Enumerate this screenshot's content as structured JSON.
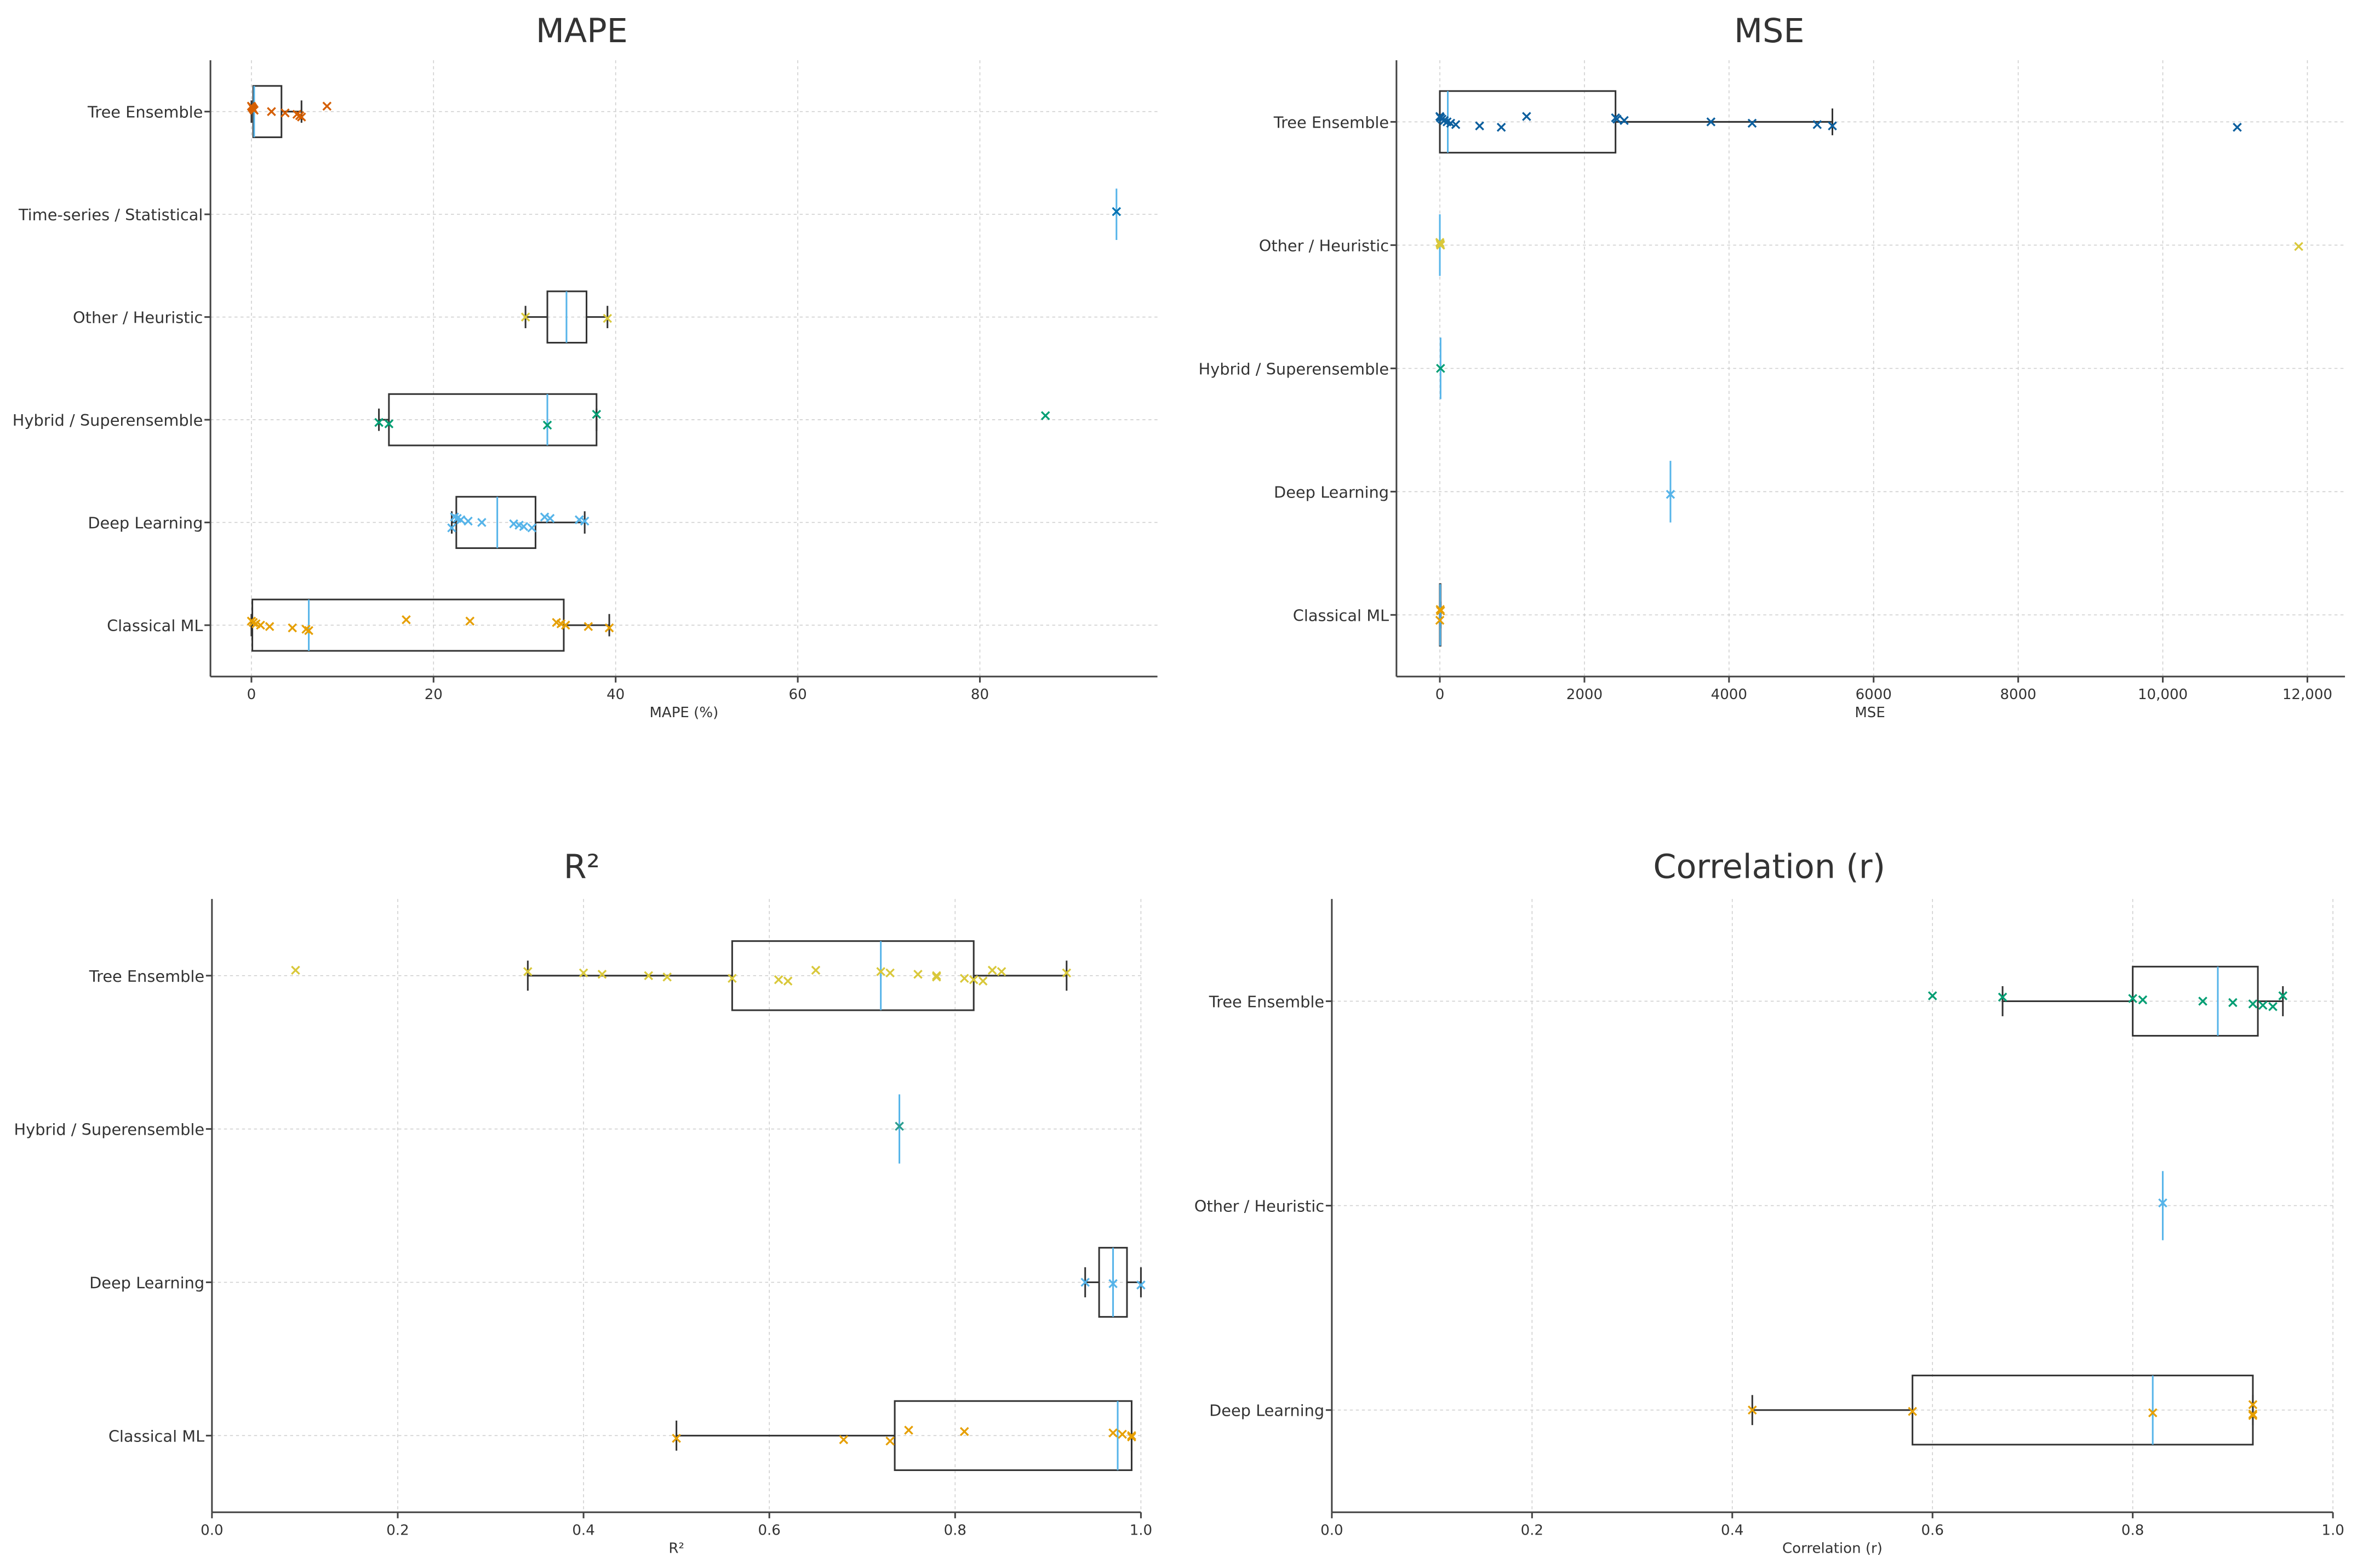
{
  "chart_data": [
    {
      "type": "boxplot",
      "orientation": "horizontal",
      "title": "MAPE",
      "xlabel": "MAPE (%)",
      "xlim": [
        -4.5,
        99.5
      ],
      "xticks": [
        0,
        20,
        40,
        60,
        80
      ],
      "xtick_labels": [
        "0",
        "20",
        "40",
        "60",
        "80"
      ],
      "grid": true,
      "categories": [
        {
          "name": "Tree Ensemble",
          "color": "#d55e00",
          "q1": 0.2,
          "median": 0.3,
          "q3": 3.3,
          "whisker_low": 0,
          "whisker_high": 5.5,
          "points": [
            0,
            0.1,
            0.2,
            0.3,
            2.2,
            3.7,
            5.0,
            5.3,
            5.5,
            8.3
          ]
        },
        {
          "name": "Time-series / Statistical",
          "color": "#0072b2",
          "q1": 95,
          "median": 95,
          "q3": 95,
          "whisker_low": 95,
          "whisker_high": 95,
          "points": [
            95
          ]
        },
        {
          "name": "Other / Heuristic",
          "color": "#d9c83a",
          "q1": 32.5,
          "median": 34.6,
          "q3": 36.8,
          "whisker_low": 30.1,
          "whisker_high": 39.1,
          "points": [
            30.1,
            39.1
          ]
        },
        {
          "name": "Hybrid / Superensemble",
          "color": "#009e73",
          "q1": 15.1,
          "median": 32.5,
          "q3": 37.9,
          "whisker_low": 14.0,
          "whisker_high": 37.9,
          "points": [
            14.0,
            15.1,
            32.5,
            37.9,
            87.2
          ]
        },
        {
          "name": "Deep Learning",
          "color": "#56b4e9",
          "q1": 22.5,
          "median": 27.0,
          "q3": 31.2,
          "whisker_low": 22.0,
          "whisker_high": 36.6,
          "points": [
            22.0,
            22.3,
            22.6,
            23.0,
            23.8,
            25.3,
            28.8,
            29.4,
            29.9,
            30.8,
            32.2,
            32.8,
            36.0,
            36.6
          ]
        },
        {
          "name": "Classical ML",
          "color": "#e69f00",
          "q1": 0.1,
          "median": 6.3,
          "q3": 34.3,
          "whisker_low": 0,
          "whisker_high": 39.3,
          "points": [
            0,
            0.2,
            0.5,
            1.0,
            2.0,
            4.5,
            6.0,
            6.3,
            17.0,
            24.0,
            33.5,
            34.0,
            34.5,
            37.0,
            39.3
          ]
        }
      ]
    },
    {
      "type": "boxplot",
      "orientation": "horizontal",
      "title": "MSE",
      "xlabel": "MSE",
      "xlim": [
        -600,
        12520
      ],
      "xticks": [
        0,
        2000,
        4000,
        6000,
        8000,
        10000,
        12000
      ],
      "xtick_labels": [
        "0",
        "2000",
        "4000",
        "6000",
        "8000",
        "10,000",
        "12,000"
      ],
      "grid": true,
      "categories": [
        {
          "name": "Tree Ensemble",
          "color": "#0c5f9e",
          "q1": 0,
          "median": 110,
          "q3": 2430,
          "whisker_low": 0,
          "whisker_high": 5430,
          "points": [
            0,
            10,
            30,
            60,
            100,
            150,
            220,
            550,
            850,
            1200,
            2430,
            2450,
            2550,
            3750,
            4320,
            5220,
            5430,
            11030
          ]
        },
        {
          "name": "Other / Heuristic",
          "color": "#d9c83a",
          "q1": 0,
          "median": 0,
          "q3": 0,
          "whisker_low": 0,
          "whisker_high": 0,
          "points": [
            0,
            5,
            10,
            11880
          ]
        },
        {
          "name": "Hybrid / Superensemble",
          "color": "#009e73",
          "q1": 10,
          "median": 10,
          "q3": 10,
          "whisker_low": 10,
          "whisker_high": 10,
          "points": [
            10
          ]
        },
        {
          "name": "Deep Learning",
          "color": "#56b4e9",
          "q1": 3190,
          "median": 3190,
          "q3": 3190,
          "whisker_low": 3190,
          "whisker_high": 3190,
          "points": [
            3190
          ]
        },
        {
          "name": "Classical ML",
          "color": "#e69f00",
          "q1": 0,
          "median": 5,
          "q3": 10,
          "whisker_low": 0,
          "whisker_high": 10,
          "points": [
            0,
            5,
            10
          ]
        }
      ]
    },
    {
      "type": "boxplot",
      "orientation": "horizontal",
      "title": "R²",
      "xlabel": "R²",
      "xlim": [
        0,
        1
      ],
      "xticks": [
        0,
        0.2,
        0.4,
        0.6,
        0.8,
        1.0
      ],
      "xtick_labels": [
        "0.0",
        "0.2",
        "0.4",
        "0.6",
        "0.8",
        "1.0"
      ],
      "grid": true,
      "categories": [
        {
          "name": "Tree Ensemble",
          "color": "#d9c83a",
          "q1": 0.56,
          "median": 0.72,
          "q3": 0.82,
          "whisker_low": 0.34,
          "whisker_high": 0.92,
          "points": [
            0.09,
            0.34,
            0.4,
            0.42,
            0.47,
            0.49,
            0.56,
            0.61,
            0.62,
            0.65,
            0.72,
            0.73,
            0.76,
            0.78,
            0.78,
            0.81,
            0.82,
            0.83,
            0.84,
            0.85,
            0.92
          ]
        },
        {
          "name": "Hybrid / Superensemble",
          "color": "#2a9d8f",
          "q1": 0.74,
          "median": 0.74,
          "q3": 0.74,
          "whisker_low": 0.74,
          "whisker_high": 0.74,
          "points": [
            0.74
          ]
        },
        {
          "name": "Deep Learning",
          "color": "#56b4e9",
          "q1": 0.955,
          "median": 0.97,
          "q3": 0.985,
          "whisker_low": 0.94,
          "whisker_high": 1.0,
          "points": [
            0.94,
            0.97,
            1.0
          ]
        },
        {
          "name": "Classical ML",
          "color": "#e69f00",
          "q1": 0.735,
          "median": 0.975,
          "q3": 0.99,
          "whisker_low": 0.5,
          "whisker_high": 0.99,
          "points": [
            0.5,
            0.68,
            0.73,
            0.75,
            0.81,
            0.97,
            0.98,
            0.99,
            0.99
          ]
        }
      ]
    },
    {
      "type": "boxplot",
      "orientation": "horizontal",
      "title": "Correlation (r)",
      "xlabel": "Correlation (r)",
      "xlim": [
        0,
        1
      ],
      "xticks": [
        0,
        0.2,
        0.4,
        0.6,
        0.8,
        1.0
      ],
      "xtick_labels": [
        "0.0",
        "0.2",
        "0.4",
        "0.6",
        "0.8",
        "1.0"
      ],
      "grid": true,
      "categories": [
        {
          "name": "Tree Ensemble",
          "color": "#009e73",
          "q1": 0.8,
          "median": 0.885,
          "q3": 0.925,
          "whisker_low": 0.67,
          "whisker_high": 0.95,
          "points": [
            0.6,
            0.67,
            0.8,
            0.81,
            0.87,
            0.9,
            0.92,
            0.93,
            0.94,
            0.95
          ]
        },
        {
          "name": "Other / Heuristic",
          "color": "#56b4e9",
          "q1": 0.83,
          "median": 0.83,
          "q3": 0.83,
          "whisker_low": 0.83,
          "whisker_high": 0.83,
          "points": [
            0.83
          ]
        },
        {
          "name": "Deep Learning",
          "color": "#e69f00",
          "q1": 0.58,
          "median": 0.82,
          "q3": 0.92,
          "whisker_low": 0.42,
          "whisker_high": 0.92,
          "points": [
            0.42,
            0.58,
            0.82,
            0.92,
            0.92,
            0.92
          ]
        }
      ]
    }
  ]
}
